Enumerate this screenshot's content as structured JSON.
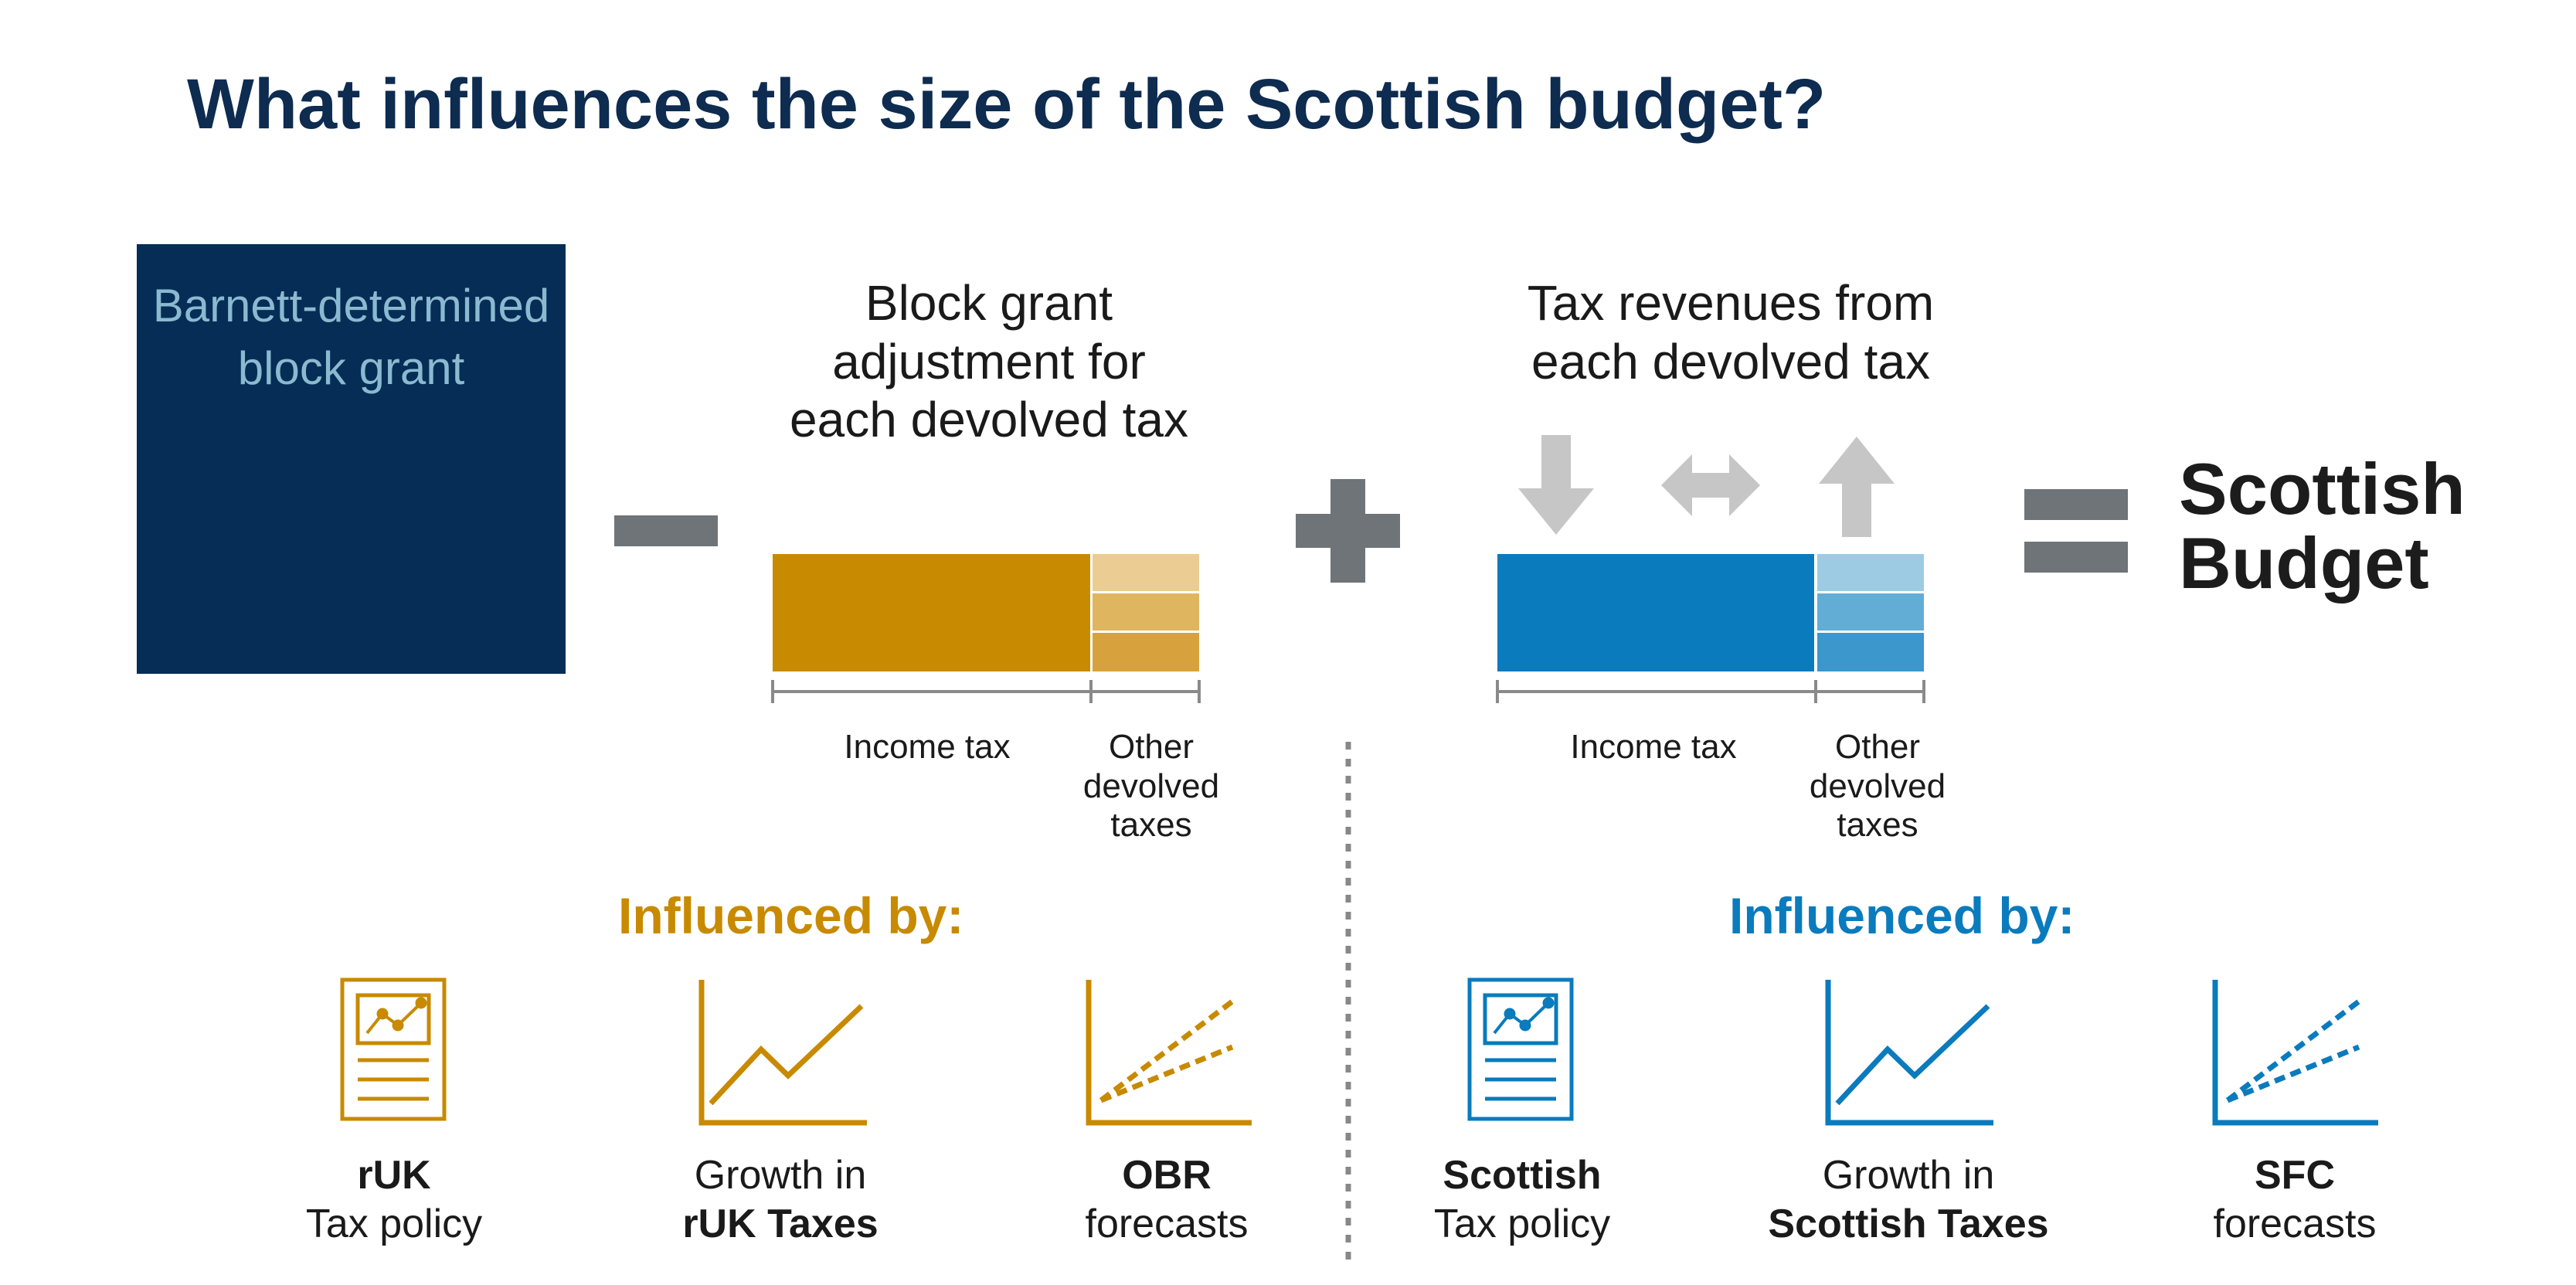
{
  "title": "What influences the size of the Scottish budget?",
  "barnett": {
    "line1": "Barnett-determined",
    "line2": "block grant"
  },
  "bga": {
    "heading": [
      "Block grant",
      "adjustment for",
      "each devolved tax"
    ],
    "income_label": "Income tax",
    "other_label": [
      "Other",
      "devolved",
      "taxes"
    ]
  },
  "tax": {
    "heading": [
      "Tax revenues from",
      "each devolved tax"
    ],
    "income_label": "Income tax",
    "other_label": [
      "Other",
      "devolved",
      "taxes"
    ]
  },
  "result": {
    "line1": "Scottish",
    "line2": "Budget"
  },
  "left_influences": {
    "heading": "Influenced by:",
    "items": [
      {
        "bold": "rUK",
        "normal": "Tax policy",
        "icon": "policy-document-icon"
      },
      {
        "normal": "Growth in",
        "bold": "rUK Taxes",
        "icon": "growth-chart-icon"
      },
      {
        "bold": "OBR",
        "normal": "forecasts",
        "icon": "forecast-chart-icon"
      }
    ]
  },
  "right_influences": {
    "heading": "Influenced by:",
    "items": [
      {
        "bold": "Scottish",
        "normal": "Tax policy",
        "icon": "policy-document-icon"
      },
      {
        "normal": "Growth in",
        "bold": "Scottish Taxes",
        "icon": "growth-chart-icon"
      },
      {
        "bold": "SFC",
        "normal": "forecasts",
        "icon": "forecast-chart-icon"
      }
    ]
  },
  "colors": {
    "navy": "#052d56",
    "title": "#0e2b50",
    "gold": "#c88a00",
    "blue": "#0a7bbd",
    "operator_grey": "#6e7478",
    "arrow_grey": "#c6c6c6"
  }
}
